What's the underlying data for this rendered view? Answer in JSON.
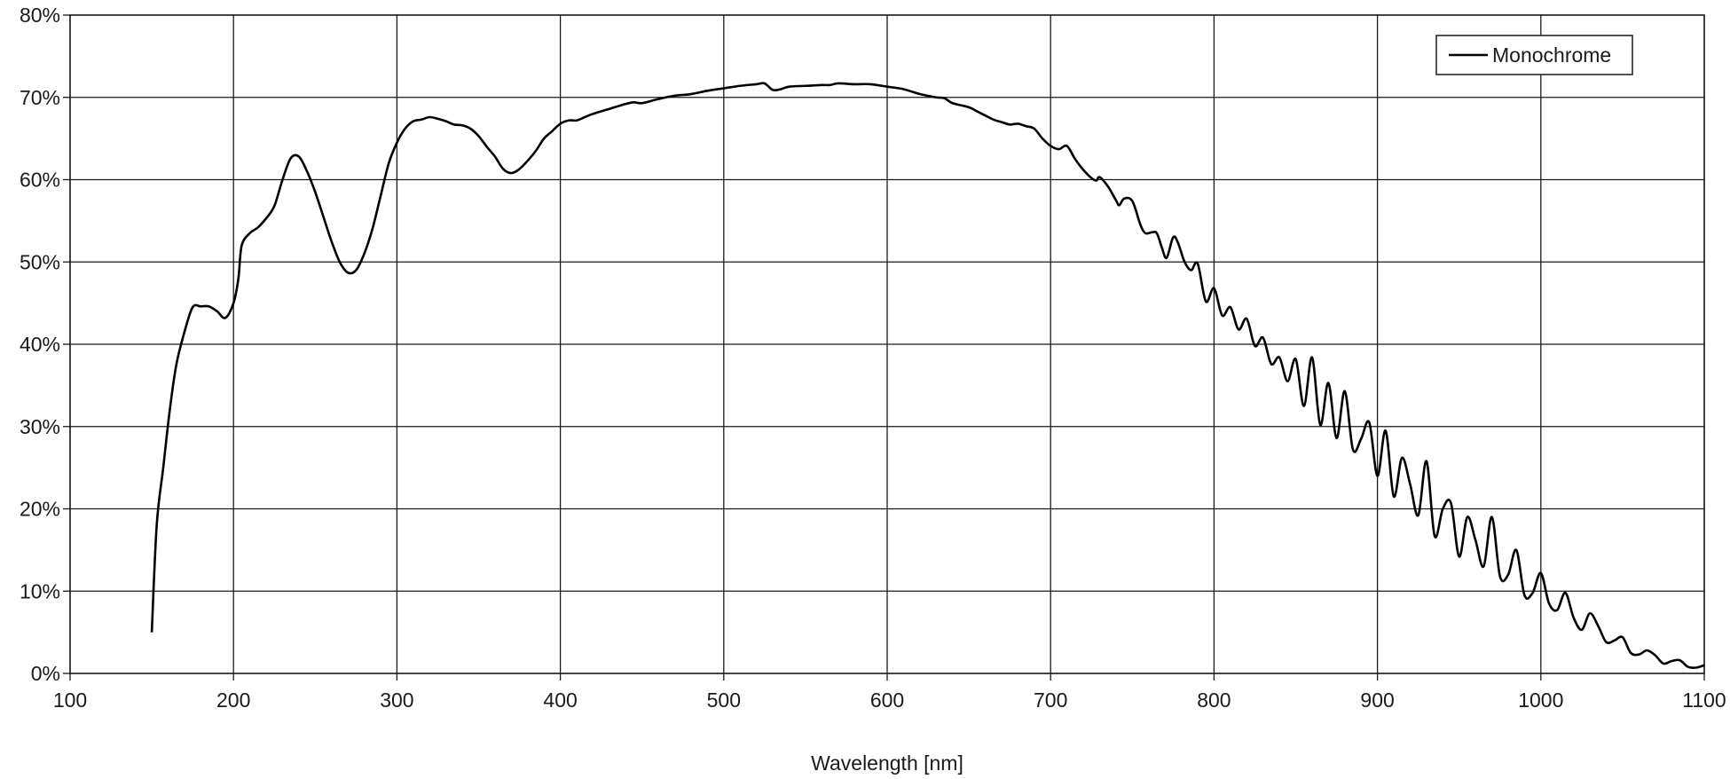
{
  "chart_data": {
    "type": "line",
    "xlabel": "Wavelength [nm]",
    "ylabel": "",
    "xlim": [
      100,
      1100
    ],
    "ylim": [
      0,
      80
    ],
    "x_ticks": [
      100,
      200,
      300,
      400,
      500,
      600,
      700,
      800,
      900,
      1000,
      1100
    ],
    "y_ticks": [
      0,
      10,
      20,
      30,
      40,
      50,
      60,
      70,
      80
    ],
    "x_tick_labels": [
      "100",
      "200",
      "300",
      "400",
      "500",
      "600",
      "700",
      "800",
      "900",
      "1000",
      "1100"
    ],
    "y_tick_labels": [
      "0%",
      "10%",
      "20%",
      "30%",
      "40%",
      "50%",
      "60%",
      "70%",
      "80%"
    ],
    "grid": true,
    "legend": {
      "placement": "top-right",
      "entries": [
        "Monochrome"
      ]
    },
    "series": [
      {
        "name": "Monochrome",
        "color": "#000000",
        "points": [
          [
            150,
            5
          ],
          [
            153,
            18
          ],
          [
            157,
            25
          ],
          [
            161,
            32
          ],
          [
            165,
            37.5
          ],
          [
            170,
            41.5
          ],
          [
            175,
            44.5
          ],
          [
            180,
            44.6
          ],
          [
            185,
            44.6
          ],
          [
            190,
            44
          ],
          [
            195,
            43.2
          ],
          [
            200,
            45
          ],
          [
            203,
            48
          ],
          [
            205,
            52
          ],
          [
            210,
            53.5
          ],
          [
            215,
            54.2
          ],
          [
            220,
            55.3
          ],
          [
            225,
            56.8
          ],
          [
            230,
            60
          ],
          [
            235,
            62.6
          ],
          [
            240,
            62.8
          ],
          [
            245,
            61
          ],
          [
            250,
            58.5
          ],
          [
            255,
            55.5
          ],
          [
            260,
            52.5
          ],
          [
            265,
            50
          ],
          [
            270,
            48.7
          ],
          [
            275,
            49
          ],
          [
            280,
            51
          ],
          [
            285,
            54
          ],
          [
            290,
            58
          ],
          [
            295,
            62
          ],
          [
            300,
            64.5
          ],
          [
            305,
            66.2
          ],
          [
            310,
            67.1
          ],
          [
            315,
            67.3
          ],
          [
            320,
            67.6
          ],
          [
            325,
            67.4
          ],
          [
            330,
            67.1
          ],
          [
            335,
            66.7
          ],
          [
            340,
            66.6
          ],
          [
            345,
            66.2
          ],
          [
            350,
            65.3
          ],
          [
            355,
            64
          ],
          [
            360,
            62.8
          ],
          [
            365,
            61.3
          ],
          [
            370,
            60.8
          ],
          [
            375,
            61.3
          ],
          [
            380,
            62.3
          ],
          [
            385,
            63.5
          ],
          [
            390,
            65
          ],
          [
            395,
            65.9
          ],
          [
            400,
            66.8
          ],
          [
            405,
            67.2
          ],
          [
            410,
            67.2
          ],
          [
            415,
            67.6
          ],
          [
            420,
            68
          ],
          [
            430,
            68.6
          ],
          [
            440,
            69.2
          ],
          [
            445,
            69.4
          ],
          [
            450,
            69.3
          ],
          [
            460,
            69.8
          ],
          [
            470,
            70.2
          ],
          [
            480,
            70.4
          ],
          [
            490,
            70.8
          ],
          [
            500,
            71.1
          ],
          [
            510,
            71.4
          ],
          [
            520,
            71.6
          ],
          [
            525,
            71.7
          ],
          [
            530,
            70.9
          ],
          [
            535,
            71
          ],
          [
            540,
            71.3
          ],
          [
            550,
            71.4
          ],
          [
            560,
            71.5
          ],
          [
            565,
            71.5
          ],
          [
            570,
            71.7
          ],
          [
            580,
            71.6
          ],
          [
            590,
            71.6
          ],
          [
            600,
            71.3
          ],
          [
            610,
            71
          ],
          [
            620,
            70.4
          ],
          [
            630,
            70
          ],
          [
            635,
            69.9
          ],
          [
            640,
            69.3
          ],
          [
            650,
            68.8
          ],
          [
            655,
            68.3
          ],
          [
            660,
            67.8
          ],
          [
            665,
            67.3
          ],
          [
            670,
            67
          ],
          [
            675,
            66.7
          ],
          [
            680,
            66.8
          ],
          [
            685,
            66.5
          ],
          [
            690,
            66.2
          ],
          [
            695,
            65
          ],
          [
            700,
            64.1
          ],
          [
            705,
            63.7
          ],
          [
            710,
            64.1
          ],
          [
            715,
            62.5
          ],
          [
            720,
            61.2
          ],
          [
            725,
            60.2
          ],
          [
            728,
            59.9
          ],
          [
            730,
            60.3
          ],
          [
            735,
            59.2
          ],
          [
            740,
            57.5
          ],
          [
            742,
            56.9
          ],
          [
            745,
            57.7
          ],
          [
            750,
            57.4
          ],
          [
            755,
            54.5
          ],
          [
            758,
            53.5
          ],
          [
            762,
            53.6
          ],
          [
            765,
            53.5
          ],
          [
            768,
            51.8
          ],
          [
            771,
            50.5
          ],
          [
            775,
            53
          ],
          [
            778,
            52.3
          ],
          [
            782,
            50
          ],
          [
            786,
            49
          ],
          [
            790,
            49.8
          ],
          [
            795,
            45.2
          ],
          [
            800,
            46.8
          ],
          [
            805,
            43.5
          ],
          [
            810,
            44.5
          ],
          [
            815,
            41.8
          ],
          [
            820,
            43.1
          ],
          [
            825,
            39.8
          ],
          [
            830,
            40.8
          ],
          [
            835,
            37.6
          ],
          [
            840,
            38.4
          ],
          [
            845,
            35.5
          ],
          [
            850,
            38.2
          ],
          [
            855,
            32.5
          ],
          [
            860,
            38.4
          ],
          [
            865,
            30.2
          ],
          [
            870,
            35.3
          ],
          [
            875,
            28.6
          ],
          [
            880,
            34.3
          ],
          [
            885,
            27.2
          ],
          [
            890,
            28.5
          ],
          [
            895,
            30.5
          ],
          [
            900,
            24
          ],
          [
            905,
            29.5
          ],
          [
            910,
            21.5
          ],
          [
            915,
            26.2
          ],
          [
            920,
            23
          ],
          [
            925,
            19.2
          ],
          [
            930,
            25.8
          ],
          [
            935,
            16.7
          ],
          [
            940,
            20
          ],
          [
            945,
            20.7
          ],
          [
            950,
            14.2
          ],
          [
            955,
            19
          ],
          [
            960,
            16.2
          ],
          [
            965,
            13
          ],
          [
            970,
            19
          ],
          [
            975,
            11.8
          ],
          [
            980,
            12
          ],
          [
            985,
            15
          ],
          [
            990,
            9.5
          ],
          [
            995,
            9.8
          ],
          [
            1000,
            12.2
          ],
          [
            1005,
            8.5
          ],
          [
            1010,
            7.7
          ],
          [
            1015,
            9.8
          ],
          [
            1020,
            6.8
          ],
          [
            1025,
            5.3
          ],
          [
            1030,
            7.3
          ],
          [
            1035,
            5.8
          ],
          [
            1040,
            3.8
          ],
          [
            1045,
            4
          ],
          [
            1050,
            4.4
          ],
          [
            1055,
            2.5
          ],
          [
            1060,
            2.3
          ],
          [
            1065,
            2.8
          ],
          [
            1070,
            2.2
          ],
          [
            1075,
            1.2
          ],
          [
            1080,
            1.5
          ],
          [
            1085,
            1.6
          ],
          [
            1090,
            0.8
          ],
          [
            1095,
            0.7
          ],
          [
            1100,
            1
          ]
        ]
      }
    ]
  }
}
